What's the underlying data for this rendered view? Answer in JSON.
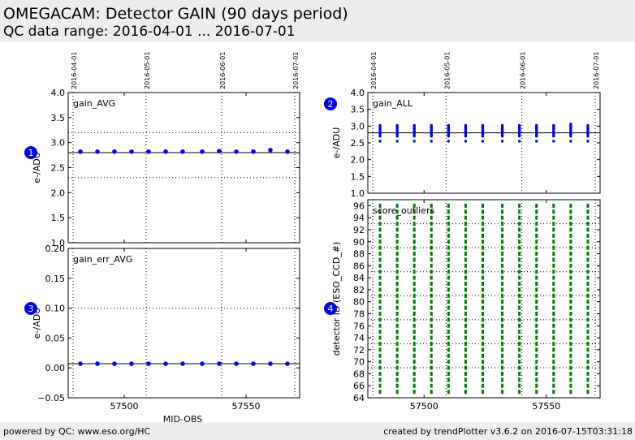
{
  "header": {
    "title": "OMEGACAM: Detector GAIN (90 days period)",
    "subtitle": "QC data range: 2016-04-01 ... 2016-07-01"
  },
  "footer": {
    "left": "powered by QC: www.eso.org/HC",
    "right": "created by trendPlotter v3.6.2 on 2016-07-15T03:31:18"
  },
  "colors": {
    "data_blue": "#0000ff",
    "outlier_green": "#008000",
    "badge_blue": "#0000ee"
  },
  "chart_data": [
    {
      "id": "gain_avg",
      "type": "scatter",
      "badge": "1",
      "panel_label": "gain_AVG",
      "ylabel": "e-/ADU",
      "xlabel": "",
      "ylim": [
        1.0,
        4.0
      ],
      "yticks": [
        "1.0",
        "1.5",
        "2.0",
        "2.5",
        "3.0",
        "3.5",
        "4.0"
      ],
      "reference_line": 2.8,
      "threshold_lines": [
        3.2,
        2.3
      ],
      "x": [
        57482,
        57489,
        57496,
        57503,
        57510,
        57517,
        57524,
        57532,
        57539,
        57546,
        57553,
        57560,
        57567
      ],
      "y": [
        2.82,
        2.82,
        2.82,
        2.82,
        2.82,
        2.82,
        2.82,
        2.82,
        2.83,
        2.82,
        2.82,
        2.85,
        2.82
      ]
    },
    {
      "id": "gain_err_avg",
      "type": "scatter",
      "badge": "3",
      "panel_label": "gain_err_AVG",
      "ylabel": "e-/ADU",
      "xlabel": "MJD-OBS",
      "ylim": [
        -0.05,
        0.2
      ],
      "yticks": [
        "−0.05",
        "0.00",
        "0.05",
        "0.10",
        "0.15",
        "0.20"
      ],
      "reference_line": 0.007,
      "threshold_lines": [
        0.1
      ],
      "x": [
        57482,
        57489,
        57496,
        57503,
        57510,
        57517,
        57524,
        57532,
        57539,
        57546,
        57553,
        57560,
        57567
      ],
      "y": [
        0.007,
        0.007,
        0.007,
        0.007,
        0.007,
        0.007,
        0.007,
        0.007,
        0.007,
        0.007,
        0.007,
        0.007,
        0.007
      ]
    },
    {
      "id": "gain_all",
      "type": "scatter",
      "badge": "2",
      "panel_label": "gain_ALL",
      "ylabel": "e-/ADU",
      "xlabel": "",
      "ylim": [
        1.0,
        4.0
      ],
      "yticks": [
        "1.0",
        "1.5",
        "2.0",
        "2.5",
        "3.0",
        "3.5",
        "4.0"
      ],
      "reference_line": 2.8,
      "x": [
        57482,
        57489,
        57496,
        57503,
        57510,
        57517,
        57524,
        57532,
        57539,
        57546,
        57553,
        57560,
        57567
      ],
      "y_min": [
        2.55,
        2.55,
        2.55,
        2.55,
        2.55,
        2.55,
        2.55,
        2.55,
        2.55,
        2.55,
        2.55,
        2.55,
        2.55
      ],
      "y_max": [
        3.02,
        3.02,
        3.02,
        3.02,
        3.02,
        3.02,
        3.02,
        3.02,
        3.02,
        3.02,
        3.02,
        3.07,
        3.02
      ]
    },
    {
      "id": "score_outliers",
      "type": "scatter",
      "badge": "4",
      "panel_label": "score_outliers",
      "ylabel": "detector ID (ESO_CCD_#)",
      "xlabel": "",
      "ylim": [
        64,
        97
      ],
      "yticks": [
        "64",
        "66",
        "68",
        "70",
        "72",
        "74",
        "76",
        "78",
        "80",
        "82",
        "84",
        "86",
        "88",
        "90",
        "92",
        "94",
        "96"
      ],
      "x": [
        57482,
        57489,
        57496,
        57503,
        57510,
        57517,
        57524,
        57532,
        57539,
        57546,
        57553,
        57560,
        57567
      ],
      "detectors": [
        65,
        96
      ]
    }
  ],
  "shared_x": {
    "xlim": [
      57477,
      57572
    ],
    "xticks": [
      57500,
      57550
    ],
    "xtick_labels": [
      "57500",
      "57550"
    ],
    "date_markers": [
      {
        "mjd": 57479,
        "label": "2016-04-01"
      },
      {
        "mjd": 57509,
        "label": "2016-05-01"
      },
      {
        "mjd": 57540,
        "label": "2016-06-01"
      },
      {
        "mjd": 57570,
        "label": "2016-07-01"
      }
    ]
  }
}
